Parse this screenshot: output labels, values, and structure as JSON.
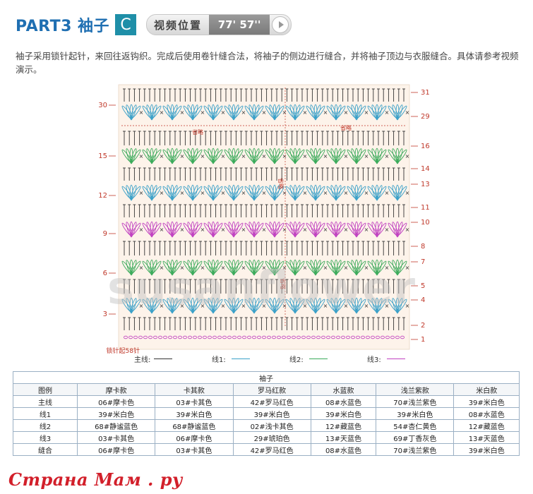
{
  "header": {
    "part": "PART3 袖子",
    "letter": "C",
    "video_label": "视频位置",
    "video_time": "77' 57''"
  },
  "description": "袖子采用锁针起针，来回往返钩织。完成后使用卷针缝合法，将袖子的侧边进行缝合，并将袖子顶边与衣服缝合。具体请参考视频演示。",
  "chart": {
    "left_labels": [
      "30",
      "15",
      "12",
      "9",
      "6",
      "3"
    ],
    "right_labels": [
      "31",
      "29",
      "16",
      "14",
      "13",
      "11",
      "10",
      "8",
      "7",
      "5",
      "4",
      "2",
      "1"
    ],
    "omit_label": "省略",
    "start_label": "锁针起58针",
    "legend": [
      {
        "label": "主线:",
        "color": "#333333"
      },
      {
        "label": "线1:",
        "color": "#3aa0c8"
      },
      {
        "label": "线2:",
        "color": "#3aaa5a"
      },
      {
        "label": "线3:",
        "color": "#c040c0"
      }
    ],
    "watermark": "susanflower"
  },
  "table": {
    "caption": "袖子",
    "headers": [
      "图例",
      "摩卡款",
      "卡其款",
      "罗马红款",
      "水蓝款",
      "浅兰紫款",
      "米白款"
    ],
    "rows": [
      [
        "主线",
        "06#摩卡色",
        "03#卡其色",
        "42#罗马红色",
        "08#水蓝色",
        "70#浅兰紫色",
        "39#米白色"
      ],
      [
        "线1",
        "39#米白色",
        "39#米白色",
        "39#米白色",
        "39#米白色",
        "39#米白色",
        "08#水蓝色"
      ],
      [
        "线2",
        "68#静谧蓝色",
        "68#静谧蓝色",
        "02#浅卡其色",
        "12#藏蓝色",
        "54#杏仁黄色",
        "12#藏蓝色"
      ],
      [
        "线3",
        "03#卡其色",
        "06#摩卡色",
        "29#琥珀色",
        "13#天蓝色",
        "69#丁香灰色",
        "13#天蓝色"
      ],
      [
        "缝合",
        "06#摩卡色",
        "03#卡其色",
        "42#罗马红色",
        "08#水蓝色",
        "70#浅兰紫色",
        "39#米白色"
      ]
    ]
  },
  "footer": {
    "brand": "Страна Мам . ру",
    "site": ""
  }
}
